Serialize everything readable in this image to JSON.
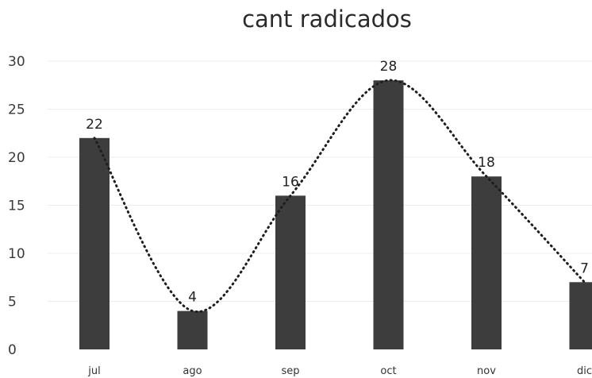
{
  "chart_data": {
    "type": "bar",
    "title": "cant radicados",
    "categories": [
      "jul",
      "ago",
      "sep",
      "oct",
      "nov",
      "dic"
    ],
    "values": [
      22,
      4,
      16,
      28,
      18,
      7
    ],
    "data_labels": [
      "22",
      "4",
      "16",
      "28",
      "18",
      "7"
    ],
    "trendline": "dotted",
    "xlabel": "",
    "ylabel": "",
    "ylim": [
      0,
      30
    ],
    "yticks": [
      0,
      5,
      10,
      15,
      20,
      25,
      30
    ],
    "grid": true,
    "legend": "none",
    "colors": {
      "bar": "#3d3d3d",
      "trend": "#1e1e1e",
      "grid": "#ececec"
    }
  }
}
